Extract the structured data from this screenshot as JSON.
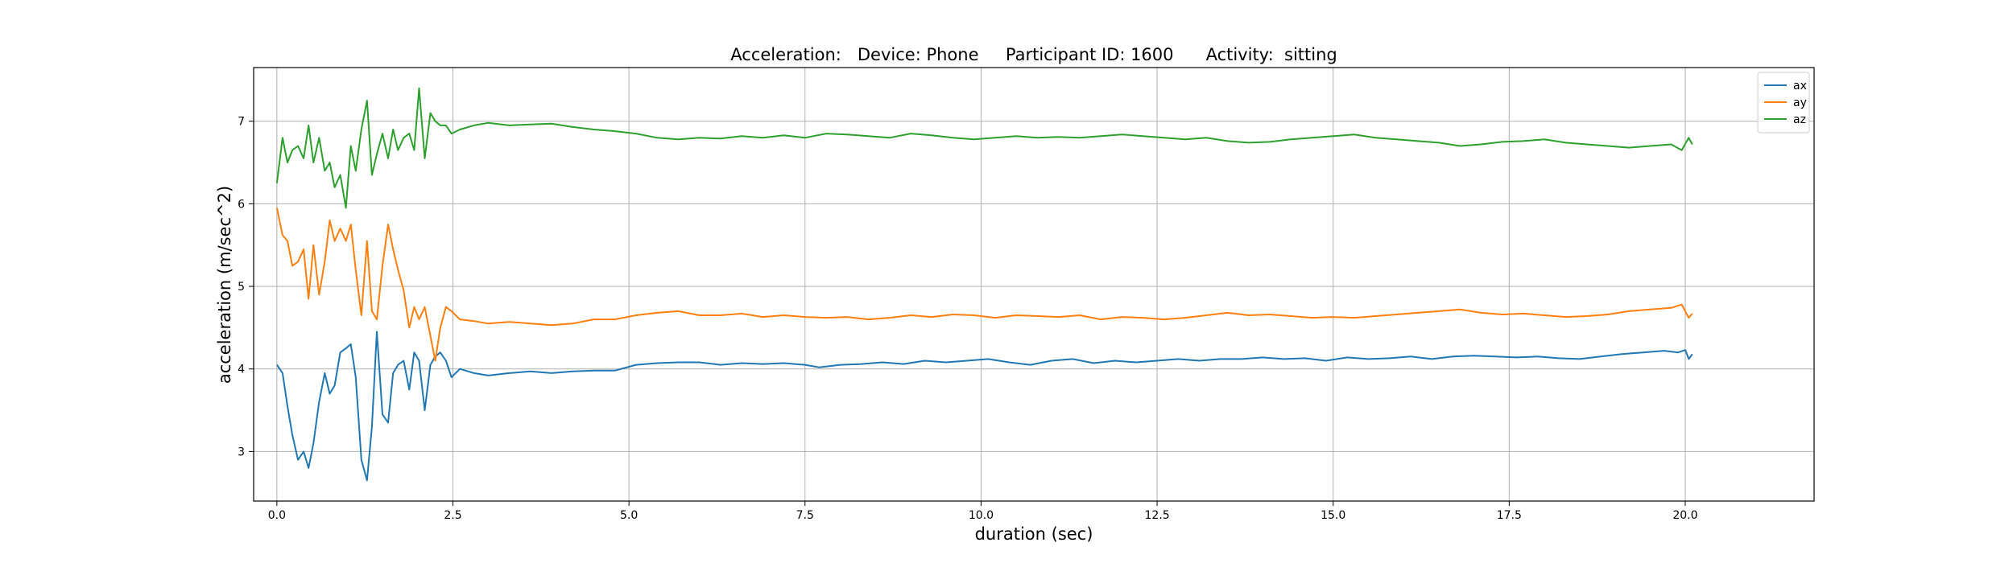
{
  "chart_data": {
    "type": "line",
    "title": "Acceleration:   Device: Phone     Participant ID: 1600      Activity:  sitting",
    "xlabel": "duration  (sec)",
    "ylabel": "acceleration  (m/sec^2)",
    "xlim": [
      -0.33,
      21.83
    ],
    "ylim": [
      2.4,
      7.65
    ],
    "xticks": [
      0.0,
      2.5,
      5.0,
      7.5,
      10.0,
      12.5,
      15.0,
      17.5,
      20.0
    ],
    "xtick_labels": [
      "0.0",
      "2.5",
      "5.0",
      "7.5",
      "10.0",
      "12.5",
      "15.0",
      "17.5",
      "20.0"
    ],
    "yticks": [
      3,
      4,
      5,
      6,
      7
    ],
    "ytick_labels": [
      "3",
      "4",
      "5",
      "6",
      "7"
    ],
    "grid": true,
    "legend_position": "top-right",
    "series": [
      {
        "name": "ax",
        "color": "#1f77b4",
        "x": [
          0.0,
          0.08,
          0.15,
          0.22,
          0.3,
          0.38,
          0.45,
          0.52,
          0.6,
          0.68,
          0.75,
          0.82,
          0.9,
          0.98,
          1.05,
          1.12,
          1.2,
          1.28,
          1.35,
          1.42,
          1.5,
          1.58,
          1.65,
          1.72,
          1.8,
          1.88,
          1.95,
          2.02,
          2.1,
          2.18,
          2.25,
          2.32,
          2.4,
          2.48,
          2.6,
          2.8,
          3.0,
          3.3,
          3.6,
          3.9,
          4.2,
          4.5,
          4.8,
          5.1,
          5.4,
          5.7,
          6.0,
          6.3,
          6.6,
          6.9,
          7.2,
          7.5,
          7.7,
          8.0,
          8.3,
          8.6,
          8.9,
          9.2,
          9.5,
          9.8,
          10.1,
          10.4,
          10.7,
          11.0,
          11.3,
          11.6,
          11.9,
          12.2,
          12.5,
          12.8,
          13.1,
          13.4,
          13.7,
          14.0,
          14.3,
          14.6,
          14.9,
          15.2,
          15.5,
          15.8,
          16.1,
          16.4,
          16.7,
          17.0,
          17.3,
          17.6,
          17.9,
          18.2,
          18.5,
          18.8,
          19.1,
          19.4,
          19.7,
          19.9,
          20.0,
          20.05,
          20.1
        ],
        "values": [
          4.05,
          3.95,
          3.55,
          3.2,
          2.9,
          3.0,
          2.8,
          3.1,
          3.6,
          3.95,
          3.7,
          3.8,
          4.2,
          4.25,
          4.3,
          3.9,
          2.9,
          2.65,
          3.3,
          4.45,
          3.45,
          3.35,
          3.95,
          4.05,
          4.1,
          3.75,
          4.2,
          4.1,
          3.5,
          4.05,
          4.15,
          4.2,
          4.1,
          3.9,
          4.0,
          3.95,
          3.92,
          3.95,
          3.97,
          3.95,
          3.97,
          3.98,
          3.98,
          4.05,
          4.07,
          4.08,
          4.08,
          4.05,
          4.07,
          4.06,
          4.07,
          4.05,
          4.02,
          4.05,
          4.06,
          4.08,
          4.06,
          4.1,
          4.08,
          4.1,
          4.12,
          4.08,
          4.05,
          4.1,
          4.12,
          4.07,
          4.1,
          4.08,
          4.1,
          4.12,
          4.1,
          4.12,
          4.12,
          4.14,
          4.12,
          4.13,
          4.1,
          4.14,
          4.12,
          4.13,
          4.15,
          4.12,
          4.15,
          4.16,
          4.15,
          4.14,
          4.15,
          4.13,
          4.12,
          4.15,
          4.18,
          4.2,
          4.22,
          4.2,
          4.23,
          4.12,
          4.18
        ]
      },
      {
        "name": "ay",
        "color": "#ff7f0e",
        "x": [
          0.0,
          0.08,
          0.15,
          0.22,
          0.3,
          0.38,
          0.45,
          0.52,
          0.6,
          0.68,
          0.75,
          0.82,
          0.9,
          0.98,
          1.05,
          1.12,
          1.2,
          1.28,
          1.35,
          1.42,
          1.5,
          1.58,
          1.65,
          1.72,
          1.8,
          1.88,
          1.95,
          2.02,
          2.1,
          2.18,
          2.25,
          2.32,
          2.4,
          2.48,
          2.6,
          2.8,
          3.0,
          3.3,
          3.6,
          3.9,
          4.2,
          4.5,
          4.8,
          5.1,
          5.4,
          5.7,
          6.0,
          6.3,
          6.6,
          6.9,
          7.2,
          7.5,
          7.8,
          8.1,
          8.4,
          8.7,
          9.0,
          9.3,
          9.6,
          9.9,
          10.2,
          10.5,
          10.8,
          11.1,
          11.4,
          11.7,
          12.0,
          12.3,
          12.6,
          12.9,
          13.2,
          13.5,
          13.8,
          14.1,
          14.4,
          14.7,
          15.0,
          15.3,
          15.6,
          15.9,
          16.2,
          16.5,
          16.8,
          17.1,
          17.4,
          17.7,
          18.0,
          18.3,
          18.6,
          18.9,
          19.2,
          19.5,
          19.8,
          19.95,
          20.05,
          20.1
        ],
        "values": [
          5.95,
          5.62,
          5.55,
          5.25,
          5.3,
          5.45,
          4.85,
          5.5,
          4.9,
          5.3,
          5.8,
          5.55,
          5.7,
          5.55,
          5.75,
          5.2,
          4.65,
          5.55,
          4.7,
          4.6,
          5.25,
          5.75,
          5.45,
          5.2,
          4.95,
          4.5,
          4.75,
          4.6,
          4.75,
          4.4,
          4.1,
          4.5,
          4.75,
          4.7,
          4.6,
          4.58,
          4.55,
          4.57,
          4.55,
          4.53,
          4.55,
          4.6,
          4.6,
          4.65,
          4.68,
          4.7,
          4.65,
          4.65,
          4.67,
          4.63,
          4.65,
          4.63,
          4.62,
          4.63,
          4.6,
          4.62,
          4.65,
          4.63,
          4.66,
          4.65,
          4.62,
          4.65,
          4.64,
          4.63,
          4.65,
          4.6,
          4.63,
          4.62,
          4.6,
          4.62,
          4.65,
          4.68,
          4.65,
          4.66,
          4.64,
          4.62,
          4.63,
          4.62,
          4.64,
          4.66,
          4.68,
          4.7,
          4.72,
          4.68,
          4.66,
          4.67,
          4.65,
          4.63,
          4.64,
          4.66,
          4.7,
          4.72,
          4.74,
          4.78,
          4.62,
          4.67
        ]
      },
      {
        "name": "az",
        "color": "#2ca02c",
        "x": [
          0.0,
          0.08,
          0.15,
          0.22,
          0.3,
          0.38,
          0.45,
          0.52,
          0.6,
          0.68,
          0.75,
          0.82,
          0.9,
          0.98,
          1.05,
          1.12,
          1.2,
          1.28,
          1.35,
          1.42,
          1.5,
          1.58,
          1.65,
          1.72,
          1.8,
          1.88,
          1.95,
          2.02,
          2.1,
          2.18,
          2.25,
          2.32,
          2.4,
          2.48,
          2.6,
          2.8,
          3.0,
          3.3,
          3.6,
          3.9,
          4.2,
          4.5,
          4.8,
          5.1,
          5.4,
          5.7,
          6.0,
          6.3,
          6.6,
          6.9,
          7.2,
          7.5,
          7.8,
          8.1,
          8.4,
          8.7,
          9.0,
          9.3,
          9.6,
          9.9,
          10.2,
          10.5,
          10.8,
          11.1,
          11.4,
          11.7,
          12.0,
          12.3,
          12.6,
          12.9,
          13.2,
          13.5,
          13.8,
          14.1,
          14.4,
          14.7,
          15.0,
          15.3,
          15.6,
          15.9,
          16.2,
          16.5,
          16.8,
          17.1,
          17.4,
          17.7,
          18.0,
          18.3,
          18.6,
          18.9,
          19.2,
          19.5,
          19.8,
          19.95,
          20.05,
          20.1
        ],
        "values": [
          6.25,
          6.8,
          6.5,
          6.65,
          6.7,
          6.55,
          6.95,
          6.5,
          6.8,
          6.4,
          6.5,
          6.2,
          6.35,
          5.95,
          6.7,
          6.4,
          6.9,
          7.25,
          6.35,
          6.6,
          6.85,
          6.55,
          6.9,
          6.65,
          6.8,
          6.85,
          6.65,
          7.4,
          6.55,
          7.1,
          7.0,
          6.95,
          6.95,
          6.85,
          6.9,
          6.95,
          6.98,
          6.95,
          6.96,
          6.97,
          6.93,
          6.9,
          6.88,
          6.85,
          6.8,
          6.78,
          6.8,
          6.79,
          6.82,
          6.8,
          6.83,
          6.8,
          6.85,
          6.84,
          6.82,
          6.8,
          6.85,
          6.83,
          6.8,
          6.78,
          6.8,
          6.82,
          6.8,
          6.81,
          6.8,
          6.82,
          6.84,
          6.82,
          6.8,
          6.78,
          6.8,
          6.76,
          6.74,
          6.75,
          6.78,
          6.8,
          6.82,
          6.84,
          6.8,
          6.78,
          6.76,
          6.74,
          6.7,
          6.72,
          6.75,
          6.76,
          6.78,
          6.74,
          6.72,
          6.7,
          6.68,
          6.7,
          6.72,
          6.65,
          6.8,
          6.72
        ]
      }
    ]
  }
}
